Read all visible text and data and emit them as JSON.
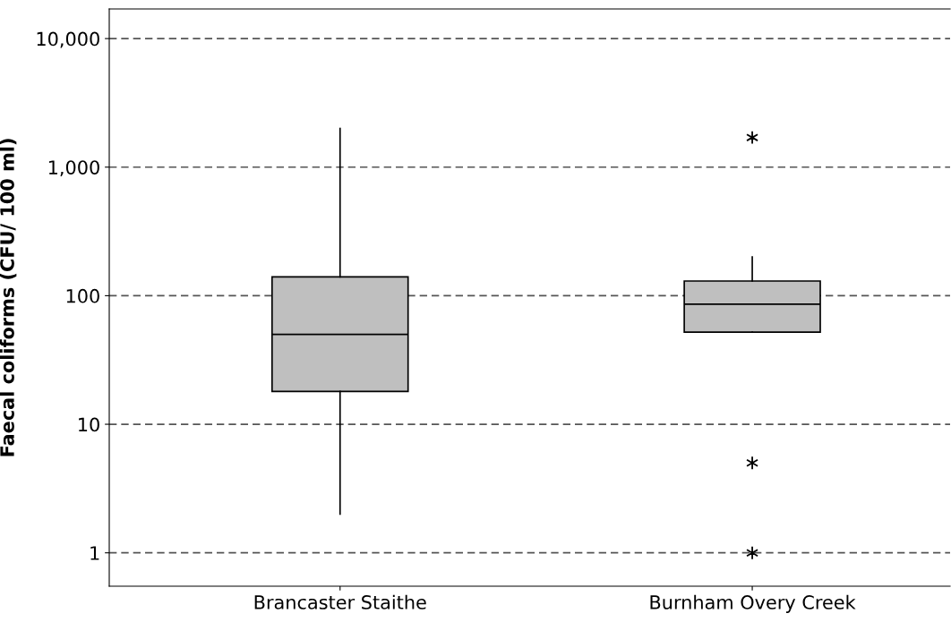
{
  "chart_data": {
    "type": "box",
    "ylabel": "Faecal coliforms (CFU/ 100 ml)",
    "categories": [
      "Brancaster Staithe",
      "Burnham Overy Creek"
    ],
    "boxes": [
      {
        "low": 2,
        "q1": 18,
        "median": 50,
        "q3": 140,
        "high": 2000
      },
      {
        "low": 52,
        "q1": 52,
        "median": 86,
        "q3": 130,
        "high": 200,
        "outliers": [
          1700,
          5,
          1
        ]
      }
    ],
    "color": "#bfbfbf",
    "log": true,
    "ylim": [
      0.55,
      17000
    ],
    "yticks": [
      1,
      10,
      100,
      {
        "value": 1000,
        "label": "1,000"
      },
      {
        "value": 10000,
        "label": "10,000"
      }
    ],
    "grid": "y",
    "line_style": "dashed"
  }
}
